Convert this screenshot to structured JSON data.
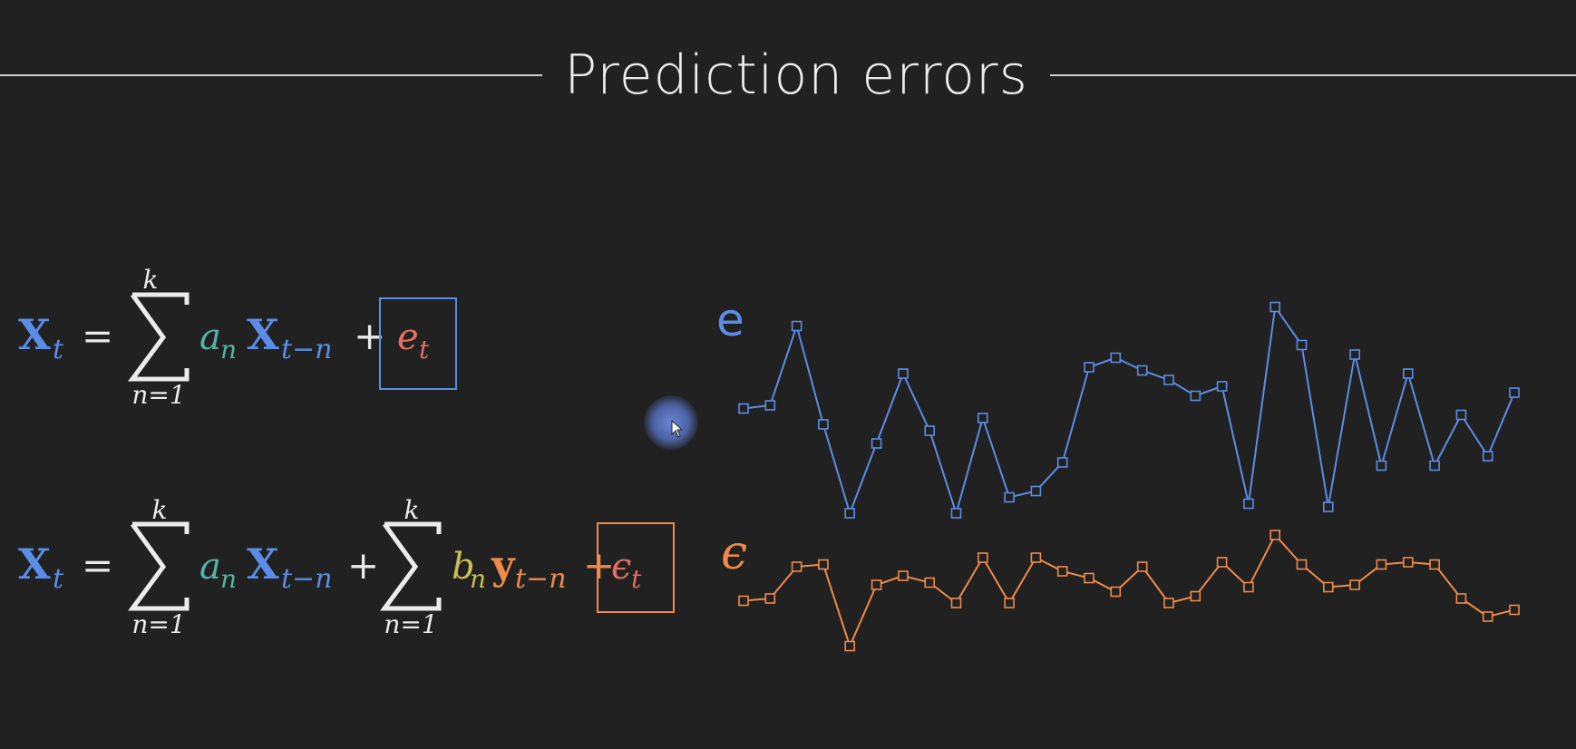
{
  "title": "Prediction errors",
  "colors": {
    "background": "#212121",
    "blue": "#5b8de6",
    "teal": "#55b3a8",
    "yellow": "#c9bf52",
    "orange": "#f08a4b",
    "red": "#e46f61",
    "white": "#ececec"
  },
  "eq1": {
    "lhs_var": "X",
    "lhs_sub": "t",
    "equals": "=",
    "sum_top": "k",
    "sum_bottom": "n=1",
    "coef": "a",
    "coef_sub": "n",
    "var": "X",
    "var_sub": "t−n",
    "plus": "+",
    "err": "e",
    "err_sub": "t"
  },
  "eq2": {
    "lhs_var": "X",
    "lhs_sub": "t",
    "equals": "=",
    "sum1_top": "k",
    "sum1_bottom": "n=1",
    "coef1": "a",
    "coef1_sub": "n",
    "var1": "X",
    "var1_sub": "t−n",
    "plus1": "+",
    "sum2_top": "k",
    "sum2_bottom": "n=1",
    "coef2": "b",
    "coef2_sub": "n",
    "var2": "y",
    "var2_sub": "t−n",
    "plus2": "+",
    "err": "ϵ",
    "err_sub": "t"
  },
  "chart_data": [
    {
      "type": "line",
      "label": "e",
      "color": "#5b8de6",
      "marker": "square",
      "values": [
        -0.3,
        -0.2,
        2.3,
        -0.8,
        -3.6,
        -1.4,
        0.8,
        -1.0,
        -3.6,
        -0.6,
        -3.1,
        -2.9,
        -2.0,
        1.0,
        1.3,
        0.9,
        0.6,
        0.1,
        0.4,
        -3.3,
        2.9,
        1.7,
        -3.4,
        1.4,
        -2.1,
        0.8,
        -2.1,
        -0.5,
        -1.8,
        0.2
      ]
    },
    {
      "type": "line",
      "label": "ϵ",
      "color": "#f08a4b",
      "marker": "square",
      "values": [
        -0.9,
        -0.8,
        0.6,
        0.7,
        -2.9,
        -0.2,
        0.2,
        -0.1,
        -1.0,
        1.0,
        -1.0,
        1.0,
        0.4,
        0.1,
        -0.5,
        0.6,
        -1.0,
        -0.7,
        0.8,
        -0.3,
        2.0,
        0.7,
        -0.3,
        -0.2,
        0.7,
        0.8,
        0.7,
        -0.8,
        -1.6,
        -1.3
      ]
    }
  ]
}
